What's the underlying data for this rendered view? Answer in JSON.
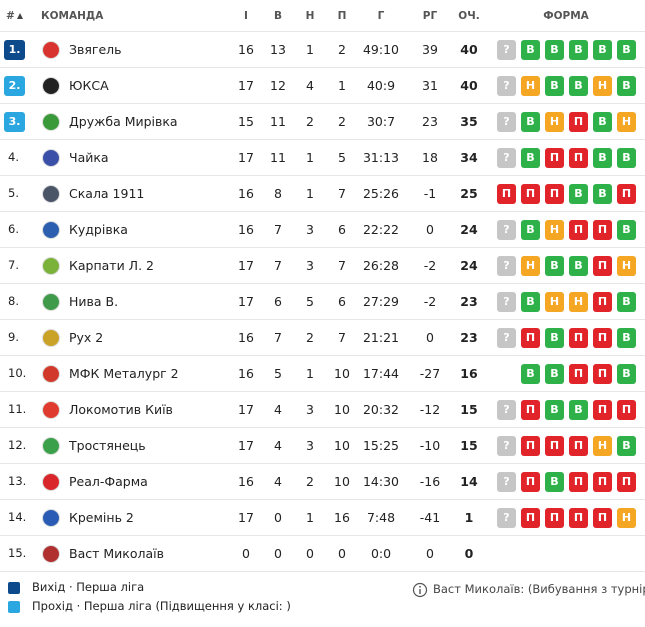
{
  "header": {
    "columns": [
      "#",
      "КОМАНДА",
      "І",
      "В",
      "Н",
      "П",
      "Г",
      "РГ",
      "ОЧ.",
      "ФОРМА"
    ]
  },
  "form_colors": {
    "В": "#2fb14a",
    "Н": "#f5a623",
    "П": "#e0242a",
    "?": "#c6c6c6"
  },
  "rows": [
    {
      "rank": "1.",
      "badge_color": "#0d4a8c",
      "logo_color": "#d8332e",
      "team": "Звягель",
      "played": 16,
      "won": 13,
      "drawn": 1,
      "lost": 2,
      "goals": "49:10",
      "diff": 39,
      "points": 40,
      "form": [
        "?",
        "В",
        "В",
        "В",
        "В",
        "В"
      ]
    },
    {
      "rank": "2.",
      "badge_color": "#2aa6e0",
      "logo_color": "#222222",
      "team": "ЮКСА",
      "played": 17,
      "won": 12,
      "drawn": 4,
      "lost": 1,
      "goals": "40:9",
      "diff": 31,
      "points": 40,
      "form": [
        "?",
        "Н",
        "В",
        "В",
        "Н",
        "В"
      ]
    },
    {
      "rank": "3.",
      "badge_color": "#2aa6e0",
      "logo_color": "#3a9a3a",
      "team": "Дружба Мирівка",
      "played": 15,
      "won": 11,
      "drawn": 2,
      "lost": 2,
      "goals": "30:7",
      "diff": 23,
      "points": 35,
      "form": [
        "?",
        "В",
        "Н",
        "П",
        "В",
        "Н"
      ]
    },
    {
      "rank": "4.",
      "logo_color": "#3a4fa8",
      "team": "Чайка",
      "played": 17,
      "won": 11,
      "drawn": 1,
      "lost": 5,
      "goals": "31:13",
      "diff": 18,
      "points": 34,
      "form": [
        "?",
        "В",
        "П",
        "П",
        "В",
        "В"
      ]
    },
    {
      "rank": "5.",
      "logo_color": "#4a5568",
      "team": "Скала 1911",
      "played": 16,
      "won": 8,
      "drawn": 1,
      "lost": 7,
      "goals": "25:26",
      "diff": -1,
      "points": 25,
      "form": [
        "П",
        "П",
        "П",
        "В",
        "В",
        "П"
      ]
    },
    {
      "rank": "6.",
      "logo_color": "#2d5fb0",
      "team": "Кудрівка",
      "played": 16,
      "won": 7,
      "drawn": 3,
      "lost": 6,
      "goals": "22:22",
      "diff": 0,
      "points": 24,
      "form": [
        "?",
        "В",
        "Н",
        "П",
        "П",
        "В"
      ]
    },
    {
      "rank": "7.",
      "logo_color": "#7bb33a",
      "team": "Карпати Л. 2",
      "played": 17,
      "won": 7,
      "drawn": 3,
      "lost": 7,
      "goals": "26:28",
      "diff": -2,
      "points": 24,
      "form": [
        "?",
        "Н",
        "В",
        "В",
        "П",
        "Н"
      ]
    },
    {
      "rank": "8.",
      "logo_color": "#3f9a4a",
      "team": "Нива В.",
      "played": 17,
      "won": 6,
      "drawn": 5,
      "lost": 6,
      "goals": "27:29",
      "diff": -2,
      "points": 23,
      "form": [
        "?",
        "В",
        "Н",
        "Н",
        "П",
        "В"
      ]
    },
    {
      "rank": "9.",
      "logo_color": "#c9a227",
      "team": "Рух 2",
      "played": 16,
      "won": 7,
      "drawn": 2,
      "lost": 7,
      "goals": "21:21",
      "diff": 0,
      "points": 23,
      "form": [
        "?",
        "П",
        "В",
        "П",
        "П",
        "В"
      ]
    },
    {
      "rank": "10.",
      "logo_color": "#d13a2a",
      "team": "МФК Металург 2",
      "played": 16,
      "won": 5,
      "drawn": 1,
      "lost": 10,
      "goals": "17:44",
      "diff": -27,
      "points": 16,
      "form": [
        "В",
        "В",
        "П",
        "П",
        "В"
      ]
    },
    {
      "rank": "11.",
      "logo_color": "#e03b2f",
      "team": "Локомотив Київ",
      "played": 17,
      "won": 4,
      "drawn": 3,
      "lost": 10,
      "goals": "20:32",
      "diff": -12,
      "points": 15,
      "form": [
        "?",
        "П",
        "В",
        "В",
        "П",
        "П"
      ]
    },
    {
      "rank": "12.",
      "logo_color": "#3aa04a",
      "team": "Тростянець",
      "played": 17,
      "won": 4,
      "drawn": 3,
      "lost": 10,
      "goals": "15:25",
      "diff": -10,
      "points": 15,
      "form": [
        "?",
        "П",
        "П",
        "П",
        "Н",
        "В"
      ]
    },
    {
      "rank": "13.",
      "logo_color": "#d8262a",
      "team": "Реал-Фарма",
      "played": 16,
      "won": 4,
      "drawn": 2,
      "lost": 10,
      "goals": "14:30",
      "diff": -16,
      "points": 14,
      "form": [
        "?",
        "П",
        "В",
        "П",
        "П",
        "П"
      ]
    },
    {
      "rank": "14.",
      "logo_color": "#2a5bb5",
      "team": "Кремінь 2",
      "played": 17,
      "won": 0,
      "drawn": 1,
      "lost": 16,
      "goals": "7:48",
      "diff": -41,
      "points": 1,
      "form": [
        "?",
        "П",
        "П",
        "П",
        "П",
        "Н"
      ]
    },
    {
      "rank": "15.",
      "logo_color": "#b03030",
      "team": "Васт Миколаїв",
      "played": 0,
      "won": 0,
      "drawn": 0,
      "lost": 0,
      "goals": "0:0",
      "diff": 0,
      "points": 0,
      "form": []
    }
  ],
  "legend": [
    {
      "color": "#0d4a8c",
      "label": "Вихід · Перша ліга"
    },
    {
      "color": "#2aa6e0",
      "label": "Прохід · Перша ліга (Підвищення у класі: )"
    }
  ],
  "note": "Васт Миколаїв: (Вибування з турніру)"
}
